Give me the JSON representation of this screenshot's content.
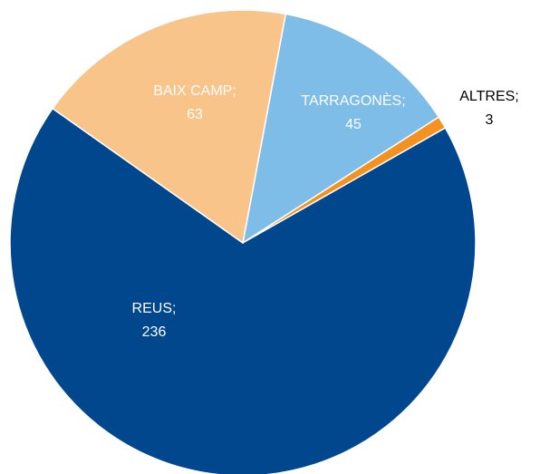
{
  "chart_data": {
    "type": "pie",
    "categories": [
      "TARRAGONÈS;",
      "ALTRES;",
      "REUS;",
      "BAIX CAMP;"
    ],
    "values": [
      45,
      3,
      236,
      63
    ],
    "colors": [
      "#7dbde8",
      "#f39221",
      "#00478e",
      "#f9c48a"
    ]
  }
}
